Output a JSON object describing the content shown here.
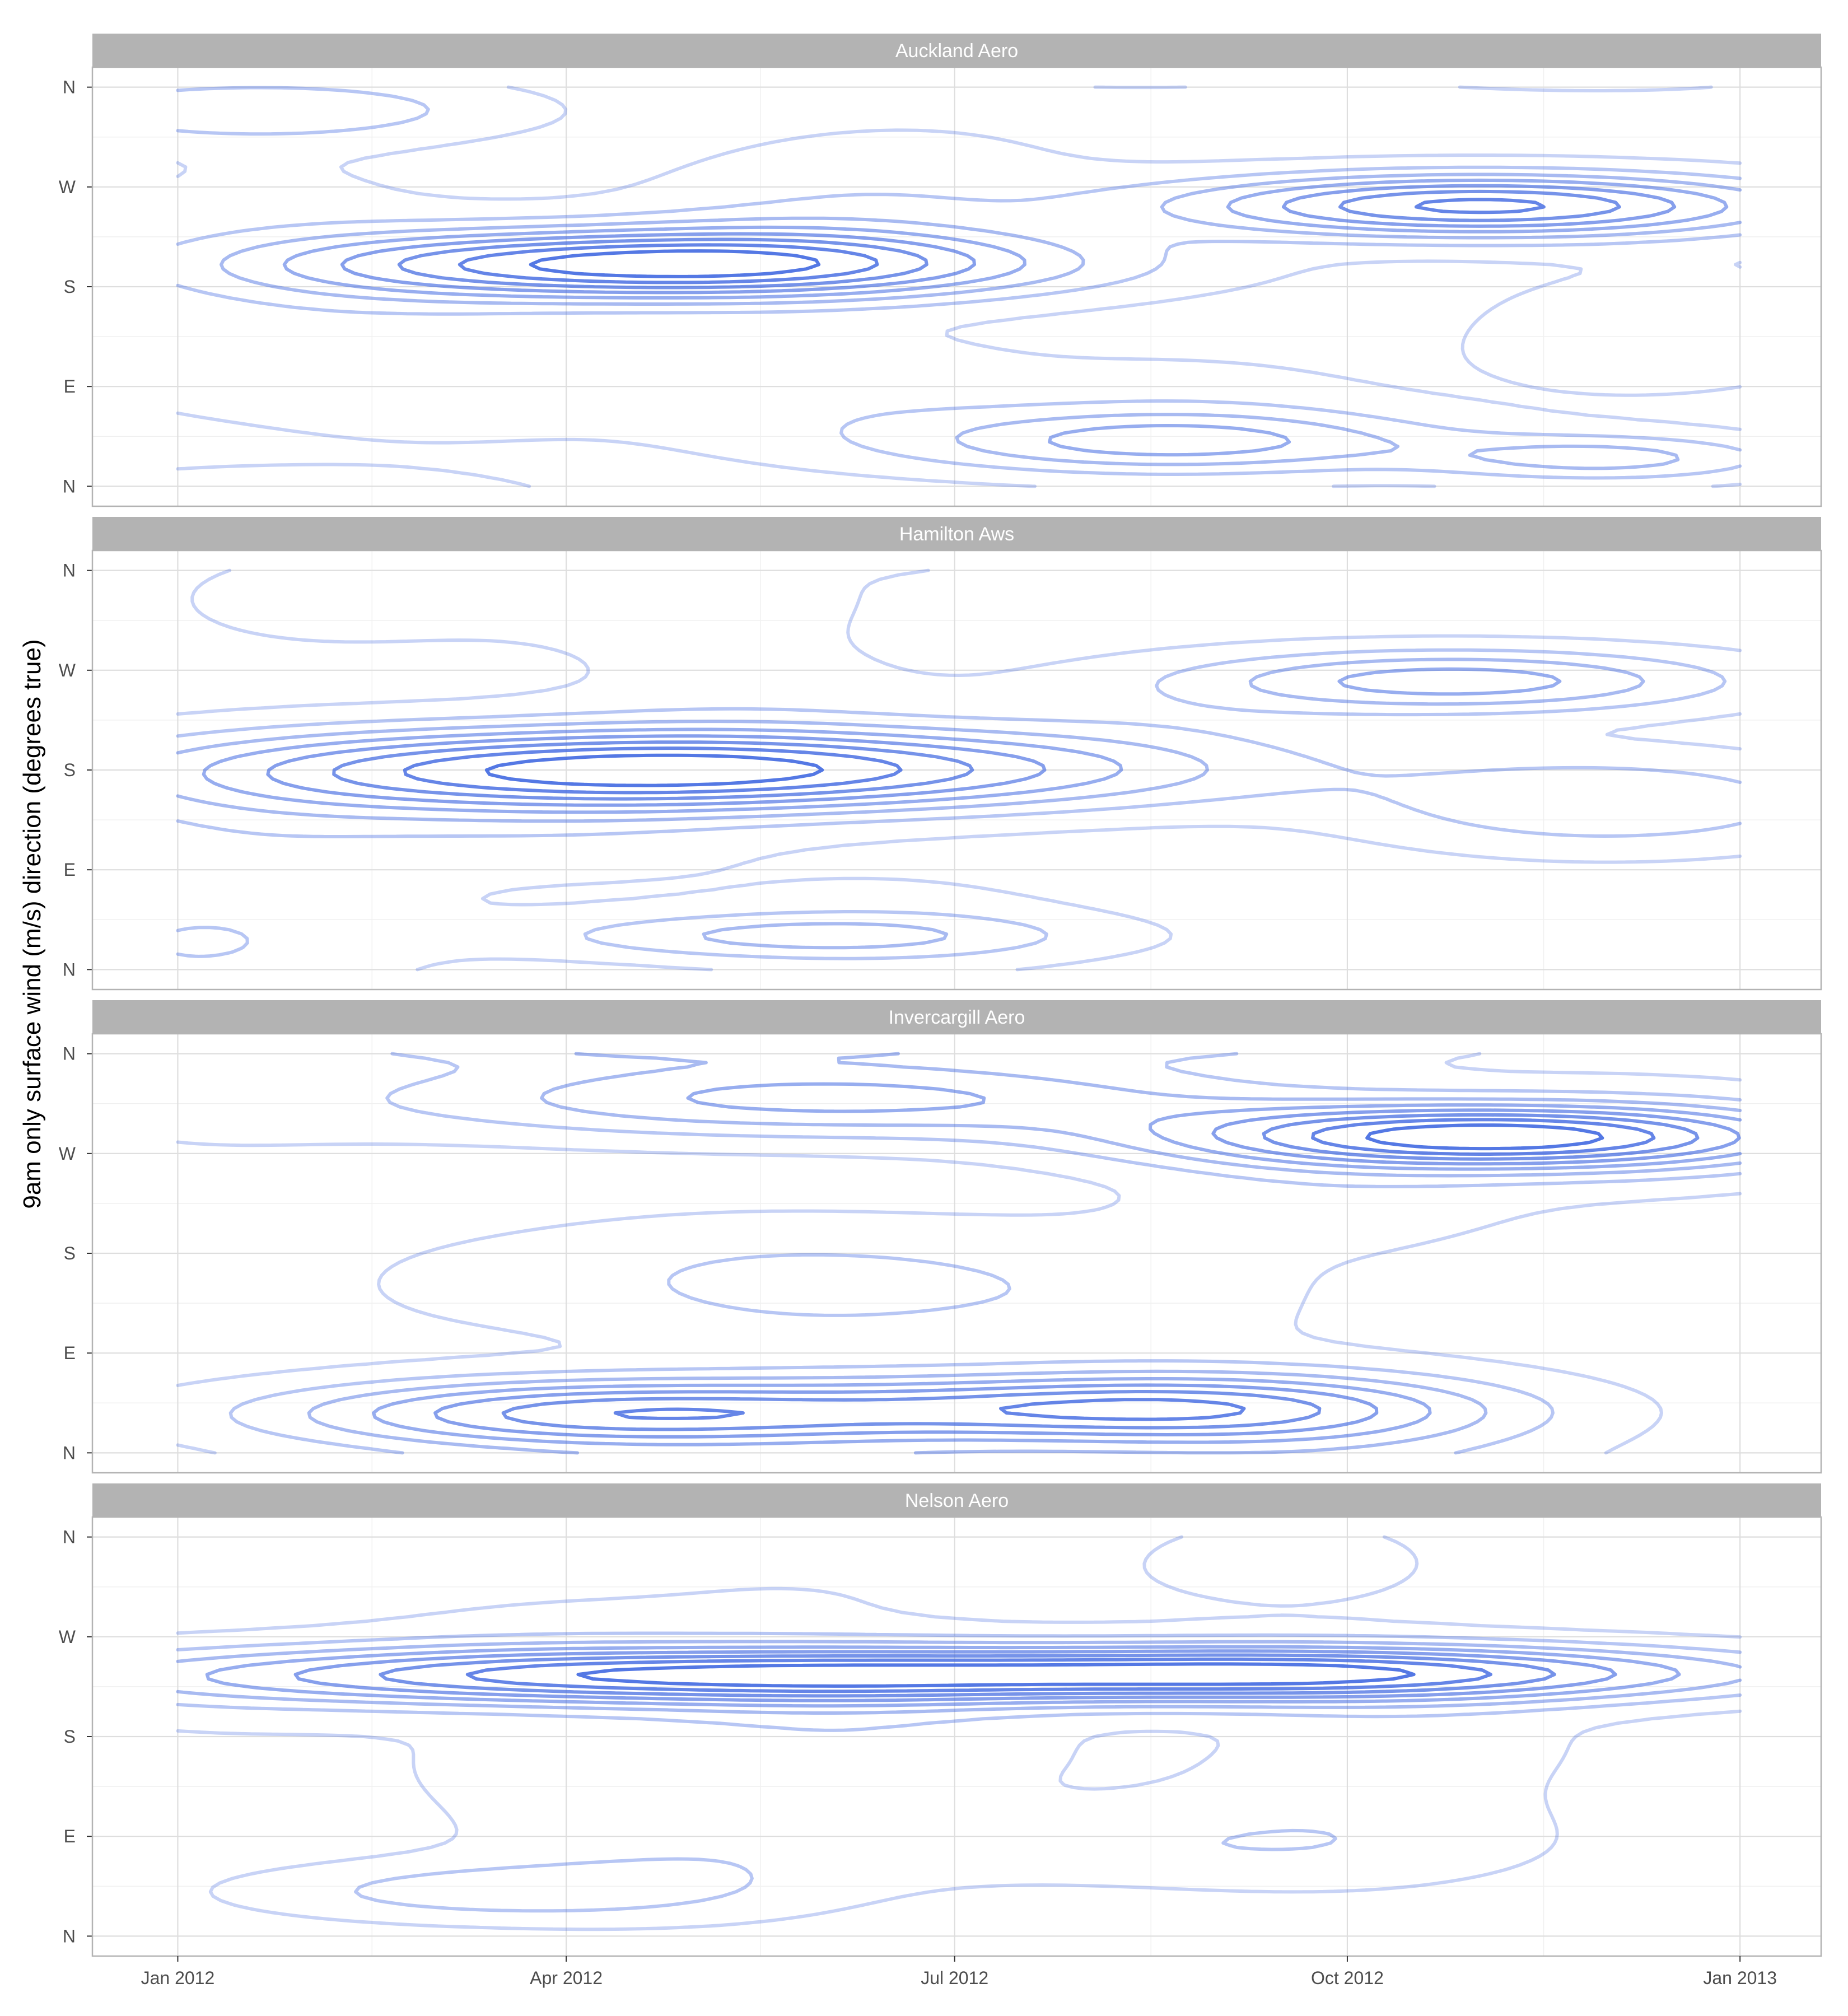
{
  "chart_data": {
    "type": "contour",
    "ylabel": "9am only surface wind (m/s) direction (degrees true)",
    "xlabel": "",
    "x_ticks": [
      "Jan 2012",
      "Apr 2012",
      "Jul 2012",
      "Oct 2012",
      "Jan 2013"
    ],
    "x_tick_dates": [
      "2012-01-01",
      "2012-04-01",
      "2012-07-01",
      "2012-10-01",
      "2013-01-01"
    ],
    "y_ticks": [
      "N",
      "E",
      "S",
      "W",
      "N"
    ],
    "y_tick_degrees": [
      0,
      90,
      180,
      270,
      360
    ],
    "xlim": [
      "2011-12-12",
      "2013-01-20"
    ],
    "ylim": [
      -18,
      378
    ],
    "grid": true,
    "legend": "none",
    "colors": {
      "contour": "#4169e1",
      "strip": "#b3b3b3",
      "grid_major": "#dedede",
      "grid_minor": "#f0f0f0",
      "border": "#b3b3b3"
    },
    "panels": [
      {
        "title": "Auckland Aero",
        "peaks": [
          {
            "date": "2012-04-24",
            "dir": 200,
            "date_sd": 62,
            "dir_sd": 22,
            "weight": 1.0
          },
          {
            "date": "2012-11-01",
            "dir": 253,
            "date_sd": 50,
            "dir_sd": 20,
            "weight": 0.85
          },
          {
            "date": "2012-08-20",
            "dir": 40,
            "date_sd": 45,
            "dir_sd": 20,
            "weight": 0.45
          },
          {
            "date": "2012-12-01",
            "dir": 25,
            "date_sd": 30,
            "dir_sd": 15,
            "weight": 0.35
          },
          {
            "date": "2012-01-20",
            "dir": 340,
            "date_sd": 40,
            "dir_sd": 20,
            "weight": 0.3
          }
        ]
      },
      {
        "title": "Hamilton Aws",
        "peaks": [
          {
            "date": "2012-04-25",
            "dir": 180,
            "date_sd": 75,
            "dir_sd": 26,
            "weight": 1.0
          },
          {
            "date": "2012-10-26",
            "dir": 260,
            "date_sd": 45,
            "dir_sd": 20,
            "weight": 0.5
          },
          {
            "date": "2012-05-25",
            "dir": 30,
            "date_sd": 45,
            "dir_sd": 15,
            "weight": 0.3
          },
          {
            "date": "2012-12-01",
            "dir": 150,
            "date_sd": 40,
            "dir_sd": 30,
            "weight": 0.3
          }
        ]
      },
      {
        "title": "Invercargill Aero",
        "peaks": [
          {
            "date": "2012-11-01",
            "dir": 285,
            "date_sd": 50,
            "dir_sd": 20,
            "weight": 1.0
          },
          {
            "date": "2012-04-15",
            "dir": 35,
            "date_sd": 55,
            "dir_sd": 22,
            "weight": 0.8
          },
          {
            "date": "2012-08-15",
            "dir": 40,
            "date_sd": 50,
            "dir_sd": 22,
            "weight": 0.75
          },
          {
            "date": "2012-06-01",
            "dir": 320,
            "date_sd": 70,
            "dir_sd": 25,
            "weight": 0.5
          }
        ]
      },
      {
        "title": "Nelson Aero",
        "peaks": [
          {
            "date": "2012-04-25",
            "dir": 235,
            "date_sd": 85,
            "dir_sd": 18,
            "weight": 1.0
          },
          {
            "date": "2012-09-26",
            "dir": 237,
            "date_sd": 70,
            "dir_sd": 18,
            "weight": 1.0
          },
          {
            "date": "2012-03-15",
            "dir": 40,
            "date_sd": 40,
            "dir_sd": 18,
            "weight": 0.3
          },
          {
            "date": "2012-08-01",
            "dir": 80,
            "date_sd": 60,
            "dir_sd": 25,
            "weight": 0.15
          }
        ]
      }
    ]
  }
}
